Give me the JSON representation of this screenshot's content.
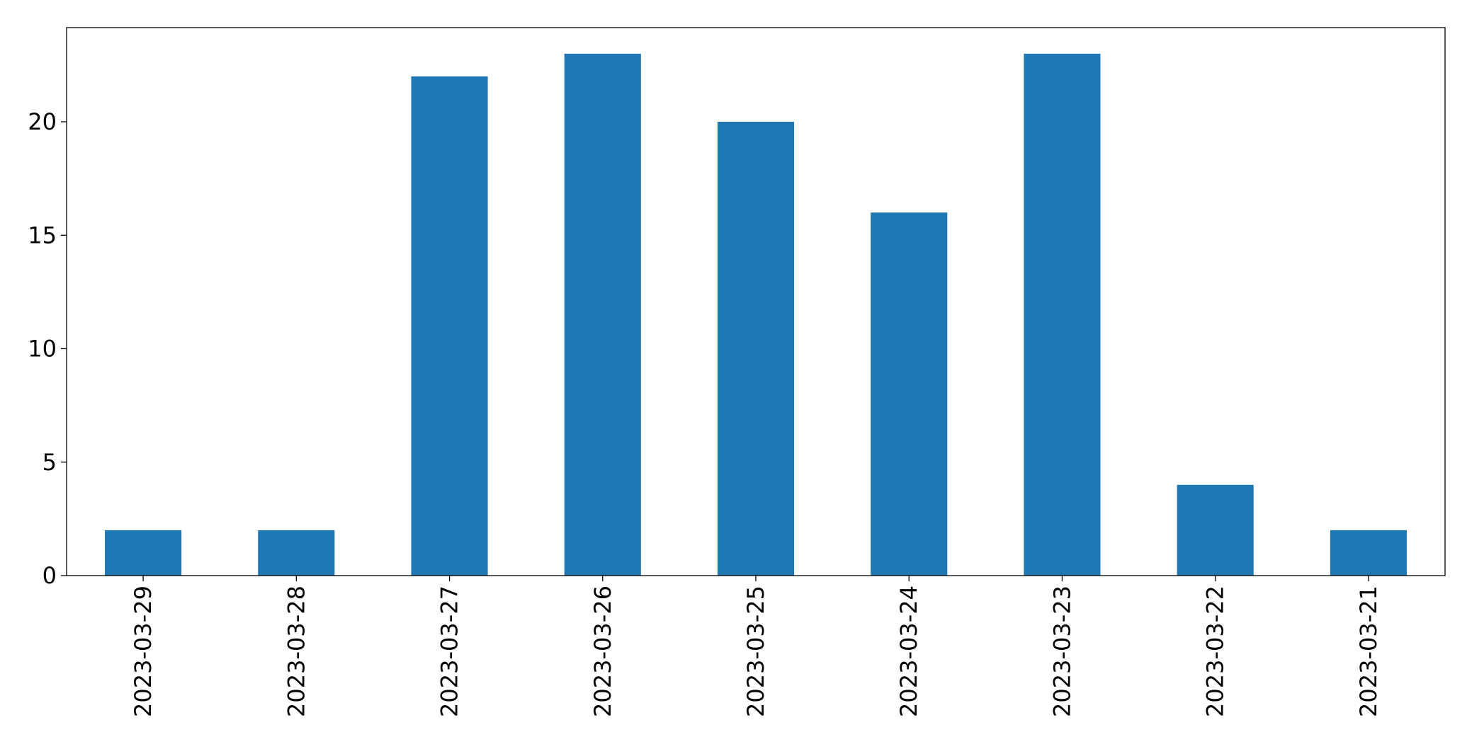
{
  "chart_data": {
    "type": "bar",
    "title": "",
    "xlabel": "",
    "ylabel": "",
    "categories": [
      "2023-03-29",
      "2023-03-28",
      "2023-03-27",
      "2023-03-26",
      "2023-03-25",
      "2023-03-24",
      "2023-03-23",
      "2023-03-22",
      "2023-03-21"
    ],
    "values": [
      2,
      2,
      22,
      23,
      20,
      16,
      23,
      4,
      2
    ],
    "ylim": [
      0,
      24.15
    ],
    "yticks": [
      0,
      5,
      10,
      15,
      20
    ],
    "ytick_labels": [
      "0",
      "5",
      "10",
      "15",
      "20"
    ],
    "bar_color": "#1f77b4",
    "grid": false,
    "legend": "none"
  }
}
